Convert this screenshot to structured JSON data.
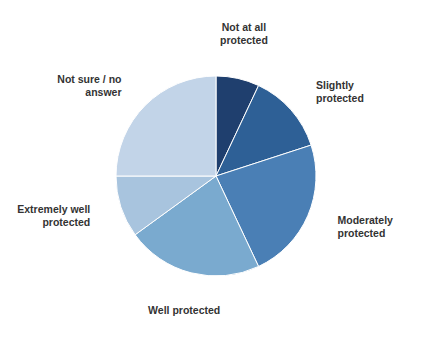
{
  "chart_data": {
    "type": "pie",
    "categories": [
      "Not at all\nprotected",
      "Slightly\nprotected",
      "Moderately\nprotected",
      "Well protected",
      "Extremely well\nprotected",
      "Not sure / no\nanswer"
    ],
    "values": [
      7,
      13,
      23,
      22,
      10,
      25
    ],
    "colors": [
      "#1f3f6e",
      "#2e6096",
      "#4a7fb5",
      "#7aaacf",
      "#a8c4de",
      "#c2d4e8"
    ]
  }
}
